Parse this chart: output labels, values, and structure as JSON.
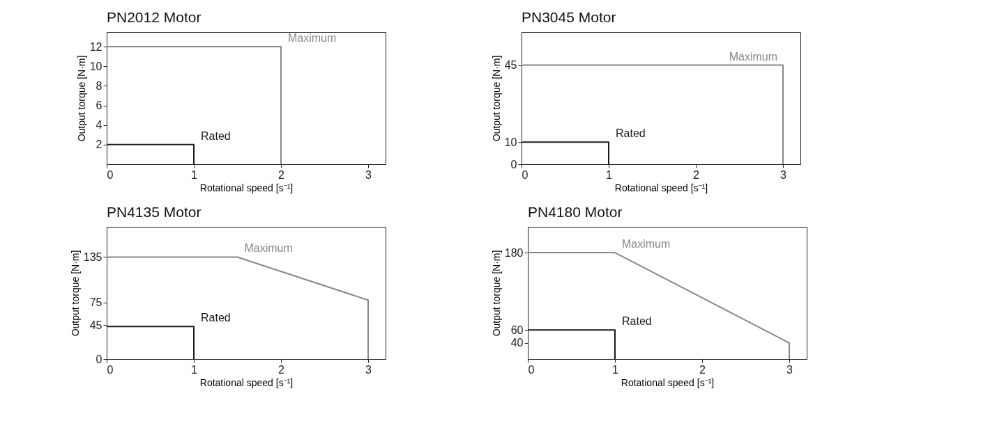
{
  "chart_data": [
    {
      "type": "line",
      "title": "PN2012 Motor",
      "xlabel": "Rotational speed [s⁻¹]",
      "ylabel": "Output torque [N·m]",
      "xlim": [
        0,
        3.2
      ],
      "xticks": [
        0,
        1,
        2,
        3
      ],
      "ylim": [
        0,
        13.5
      ],
      "yticks": [
        2,
        4,
        6,
        8,
        10,
        12
      ],
      "series": [
        {
          "name": "Maximum",
          "color": "#888888",
          "x": [
            0,
            2,
            2
          ],
          "values": [
            12,
            12,
            0
          ]
        },
        {
          "name": "Rated",
          "color": "#1a1a1a",
          "x": [
            0,
            1,
            1
          ],
          "values": [
            2,
            2,
            0
          ]
        }
      ]
    },
    {
      "type": "line",
      "title": "PN3045 Motor",
      "xlabel": "Rotational speed [s⁻¹]",
      "ylabel": "Output torque [N·m]",
      "xlim": [
        0,
        3.2
      ],
      "xticks": [
        0,
        1,
        2,
        3
      ],
      "ylim": [
        0,
        60
      ],
      "yticks": [
        0,
        10,
        45
      ],
      "series": [
        {
          "name": "Maximum",
          "color": "#888888",
          "x": [
            0,
            3,
            3
          ],
          "values": [
            45,
            45,
            0
          ]
        },
        {
          "name": "Rated",
          "color": "#1a1a1a",
          "x": [
            0,
            1,
            1
          ],
          "values": [
            10,
            10,
            0
          ]
        }
      ]
    },
    {
      "type": "line",
      "title": "PN4135 Motor",
      "xlabel": "Rotational speed [s⁻¹]",
      "ylabel": "Output torque [N·m]",
      "xlim": [
        0,
        3.2
      ],
      "xticks": [
        0,
        1,
        2,
        3
      ],
      "ylim": [
        0,
        175
      ],
      "yticks": [
        0,
        45,
        75,
        135
      ],
      "series": [
        {
          "name": "Maximum",
          "color": "#888888",
          "x": [
            0,
            1.5,
            3,
            3
          ],
          "values": [
            135,
            135,
            78,
            0
          ]
        },
        {
          "name": "Rated",
          "color": "#1a1a1a",
          "x": [
            0,
            1,
            1
          ],
          "values": [
            43,
            43,
            0
          ]
        }
      ]
    },
    {
      "type": "line",
      "title": "PN4180 Motor",
      "xlabel": "Rotational speed [s⁻¹]",
      "ylabel": "Output torque [N·m]",
      "xlim": [
        0,
        3.2
      ],
      "xticks": [
        0,
        1,
        2,
        3
      ],
      "ylim": [
        15,
        220
      ],
      "yticks": [
        40,
        60,
        180
      ],
      "series": [
        {
          "name": "Maximum",
          "color": "#888888",
          "x": [
            0,
            1,
            3,
            3
          ],
          "values": [
            180,
            180,
            40,
            15
          ]
        },
        {
          "name": "Rated",
          "color": "#1a1a1a",
          "x": [
            0,
            1,
            1
          ],
          "values": [
            60,
            60,
            15
          ]
        }
      ]
    }
  ]
}
